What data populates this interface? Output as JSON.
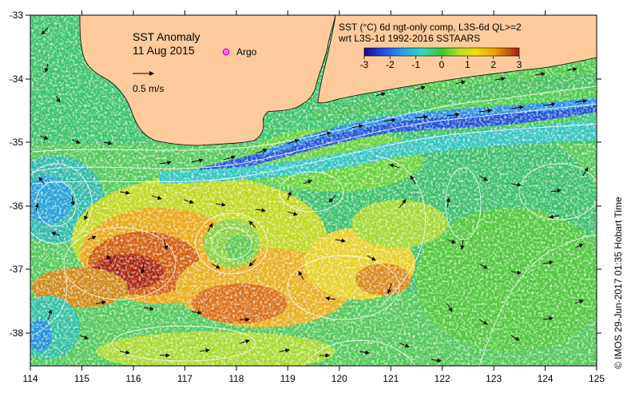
{
  "map": {
    "title": "SST Anomaly",
    "date": "11 Aug 2015",
    "argo_label": "Argo",
    "vector_scale_label": "0.5 m/s",
    "colorbar_title_line1": "SST (°C) 6d ngt-only comp, L3S-6d QL>=2",
    "colorbar_title_line2": "wrt L3S-1d 1992-2016 SSTAARS",
    "colorbar_ticks": [
      "-3",
      "-2",
      "-1",
      "0",
      "1",
      "2",
      "3"
    ],
    "lon_ticks": [
      "114",
      "115",
      "116",
      "117",
      "118",
      "119",
      "120",
      "121",
      "122",
      "123",
      "124",
      "125"
    ],
    "lat_ticks": [
      "-33",
      "-34",
      "-35",
      "-36",
      "-37",
      "-38"
    ],
    "credit": "© IMOS 29-Jun-2017 01:35 Hobart Time",
    "colors": {
      "land": "#FFCB9C",
      "argo": "#FF00FF",
      "background": "#FFFFFF"
    }
  }
}
